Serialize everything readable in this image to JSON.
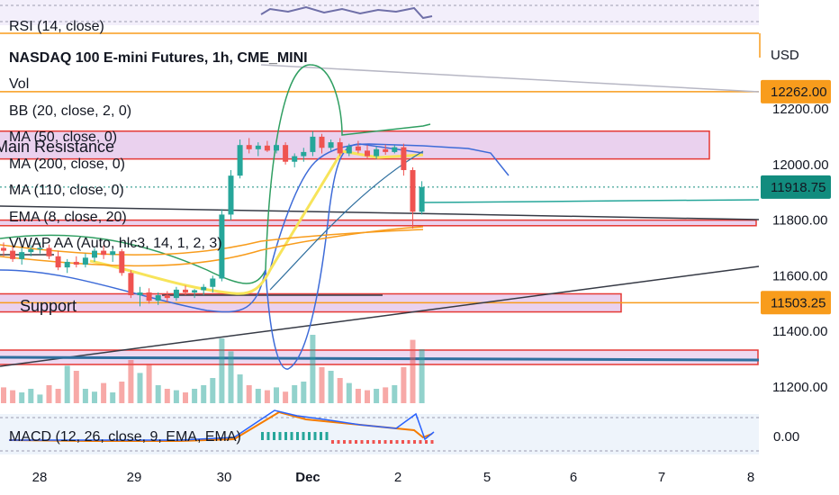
{
  "chart_data": {
    "type": "candlestick",
    "title": "NASDAQ 100 E-mini Futures, 1h, CME_MINI",
    "currency": "USD",
    "indicators": [
      "Vol",
      "BB (20, close, 2, 0)",
      "MA (50, close, 0)",
      "MA (200, close, 0)",
      "MA (110, close, 0)",
      "EMA (8, close, 20)",
      "VWAP AA (Auto, hlc3, 14, 1, 2, 3)"
    ],
    "rsi_label": "RSI (14, close)",
    "macd_label": "MACD (12, 26, close, 9, EMA, EMA)",
    "y_ticks": [
      "12200.00",
      "12000.00",
      "11800.00",
      "11600.00",
      "11400.00",
      "11200.00"
    ],
    "y_tick_values": [
      12200,
      12000,
      11800,
      11600,
      11400,
      11200
    ],
    "price_badges": [
      {
        "value": "12262.00",
        "color": "#f89c1c"
      },
      {
        "value": "11918.75",
        "color": "#128c7e"
      },
      {
        "value": "11503.25",
        "color": "#f89c1c"
      }
    ],
    "macd_tick": "0.00",
    "x_ticks": [
      "28",
      "29",
      "30",
      "Dec",
      "2",
      "5",
      "6",
      "7",
      "8"
    ],
    "zones": [
      {
        "label": "Main Resistance",
        "range": [
          12020,
          12120
        ]
      },
      {
        "label": "",
        "range": [
          11780,
          11800
        ]
      },
      {
        "label": "Support",
        "range": [
          11470,
          11535
        ]
      }
    ],
    "candles": [
      {
        "o": 11700,
        "h": 11720,
        "l": 11670,
        "c": 11690
      },
      {
        "o": 11690,
        "h": 11705,
        "l": 11650,
        "c": 11660
      },
      {
        "o": 11660,
        "h": 11700,
        "l": 11640,
        "c": 11685
      },
      {
        "o": 11685,
        "h": 11710,
        "l": 11670,
        "c": 11695
      },
      {
        "o": 11695,
        "h": 11720,
        "l": 11680,
        "c": 11700
      },
      {
        "o": 11700,
        "h": 11712,
        "l": 11660,
        "c": 11670
      },
      {
        "o": 11670,
        "h": 11690,
        "l": 11620,
        "c": 11630
      },
      {
        "o": 11630,
        "h": 11660,
        "l": 11610,
        "c": 11650
      },
      {
        "o": 11650,
        "h": 11670,
        "l": 11630,
        "c": 11640
      },
      {
        "o": 11640,
        "h": 11680,
        "l": 11630,
        "c": 11665
      },
      {
        "o": 11665,
        "h": 11700,
        "l": 11650,
        "c": 11690
      },
      {
        "o": 11690,
        "h": 11710,
        "l": 11660,
        "c": 11675
      },
      {
        "o": 11675,
        "h": 11700,
        "l": 11650,
        "c": 11688
      },
      {
        "o": 11688,
        "h": 11696,
        "l": 11600,
        "c": 11610
      },
      {
        "o": 11610,
        "h": 11620,
        "l": 11520,
        "c": 11530
      },
      {
        "o": 11530,
        "h": 11560,
        "l": 11490,
        "c": 11540
      },
      {
        "o": 11540,
        "h": 11555,
        "l": 11500,
        "c": 11510
      },
      {
        "o": 11510,
        "h": 11540,
        "l": 11495,
        "c": 11530
      },
      {
        "o": 11530,
        "h": 11545,
        "l": 11505,
        "c": 11520
      },
      {
        "o": 11520,
        "h": 11560,
        "l": 11510,
        "c": 11550
      },
      {
        "o": 11550,
        "h": 11565,
        "l": 11530,
        "c": 11540
      },
      {
        "o": 11540,
        "h": 11552,
        "l": 11520,
        "c": 11548
      },
      {
        "o": 11548,
        "h": 11570,
        "l": 11530,
        "c": 11560
      },
      {
        "o": 11560,
        "h": 11600,
        "l": 11540,
        "c": 11590
      },
      {
        "o": 11590,
        "h": 11840,
        "l": 11580,
        "c": 11820
      },
      {
        "o": 11820,
        "h": 11980,
        "l": 11800,
        "c": 11960
      },
      {
        "o": 11960,
        "h": 12090,
        "l": 11950,
        "c": 12070
      },
      {
        "o": 12070,
        "h": 12095,
        "l": 12040,
        "c": 12055
      },
      {
        "o": 12055,
        "h": 12080,
        "l": 12030,
        "c": 12068
      },
      {
        "o": 12068,
        "h": 12085,
        "l": 12045,
        "c": 12050
      },
      {
        "o": 12050,
        "h": 12078,
        "l": 12040,
        "c": 12070
      },
      {
        "o": 12070,
        "h": 12080,
        "l": 12000,
        "c": 12010
      },
      {
        "o": 12010,
        "h": 12040,
        "l": 11990,
        "c": 12030
      },
      {
        "o": 12030,
        "h": 12060,
        "l": 12010,
        "c": 12045
      },
      {
        "o": 12045,
        "h": 12120,
        "l": 12030,
        "c": 12100
      },
      {
        "o": 12100,
        "h": 12110,
        "l": 12040,
        "c": 12060
      },
      {
        "o": 12060,
        "h": 12090,
        "l": 12050,
        "c": 12080
      },
      {
        "o": 12080,
        "h": 12095,
        "l": 12030,
        "c": 12040
      },
      {
        "o": 12040,
        "h": 12075,
        "l": 12030,
        "c": 12065
      },
      {
        "o": 12065,
        "h": 12085,
        "l": 12040,
        "c": 12050
      },
      {
        "o": 12050,
        "h": 12070,
        "l": 12020,
        "c": 12030
      },
      {
        "o": 12030,
        "h": 12065,
        "l": 12020,
        "c": 12055
      },
      {
        "o": 12055,
        "h": 12072,
        "l": 12035,
        "c": 12045
      },
      {
        "o": 12045,
        "h": 12070,
        "l": 12040,
        "c": 12062
      },
      {
        "o": 12062,
        "h": 12075,
        "l": 11960,
        "c": 11980
      },
      {
        "o": 11980,
        "h": 11990,
        "l": 11770,
        "c": 11830
      },
      {
        "o": 11830,
        "h": 11940,
        "l": 11820,
        "c": 11919
      }
    ],
    "volumes": [
      0.22,
      0.18,
      0.15,
      0.2,
      0.12,
      0.25,
      0.2,
      0.52,
      0.45,
      0.2,
      0.16,
      0.28,
      0.15,
      0.3,
      0.6,
      0.42,
      0.55,
      0.25,
      0.2,
      0.18,
      0.15,
      0.2,
      0.25,
      0.35,
      0.9,
      0.72,
      0.4,
      0.25,
      0.2,
      0.18,
      0.22,
      0.16,
      0.25,
      0.3,
      0.95,
      0.5,
      0.45,
      0.35,
      0.28,
      0.2,
      0.18,
      0.2,
      0.22,
      0.25,
      0.5,
      0.88,
      0.75
    ],
    "ylim": [
      11140,
      12340
    ],
    "grid": true
  }
}
